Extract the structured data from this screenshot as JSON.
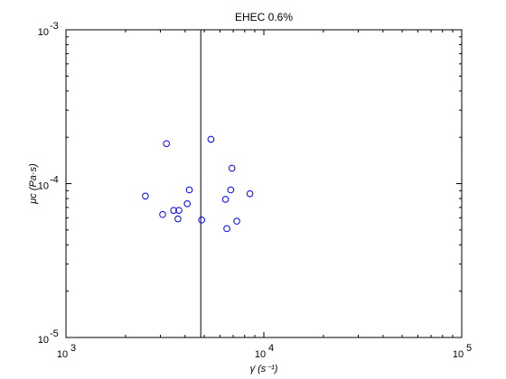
{
  "chart_data": {
    "type": "scatter",
    "title": "EHEC 0.6%",
    "xlabel": "γ̇ (s⁻¹)",
    "ylabel": "μc (Pa·s)",
    "xscale": "log",
    "yscale": "log",
    "xlim": [
      1000,
      100000
    ],
    "ylim": [
      1e-05,
      0.001
    ],
    "grid": false,
    "x_ticks": [
      {
        "value": 1000,
        "base": "10",
        "exp": "3"
      },
      {
        "value": 10000,
        "base": "10",
        "exp": "4"
      },
      {
        "value": 100000,
        "base": "10",
        "exp": "5"
      }
    ],
    "y_ticks": [
      {
        "value": 1e-05,
        "base": "10",
        "exp": "-5"
      },
      {
        "value": 0.0001,
        "base": "10",
        "exp": "-4"
      },
      {
        "value": 0.001,
        "base": "10",
        "exp": "-3"
      }
    ],
    "vline_x": 4800,
    "marker_color": "#0000ff",
    "line_color": "#000000",
    "points": [
      {
        "x": 2520,
        "y": 8.3e-05
      },
      {
        "x": 3080,
        "y": 6.3e-05
      },
      {
        "x": 3220,
        "y": 0.000182
      },
      {
        "x": 3500,
        "y": 6.7e-05
      },
      {
        "x": 3680,
        "y": 5.9e-05
      },
      {
        "x": 3720,
        "y": 6.7e-05
      },
      {
        "x": 4100,
        "y": 7.4e-05
      },
      {
        "x": 4200,
        "y": 9.1e-05
      },
      {
        "x": 4850,
        "y": 5.8e-05
      },
      {
        "x": 5400,
        "y": 0.000194
      },
      {
        "x": 6400,
        "y": 7.9e-05
      },
      {
        "x": 6500,
        "y": 5.1e-05
      },
      {
        "x": 6800,
        "y": 9.1e-05
      },
      {
        "x": 6900,
        "y": 0.000126
      },
      {
        "x": 7300,
        "y": 5.7e-05
      },
      {
        "x": 8500,
        "y": 8.6e-05
      }
    ]
  }
}
